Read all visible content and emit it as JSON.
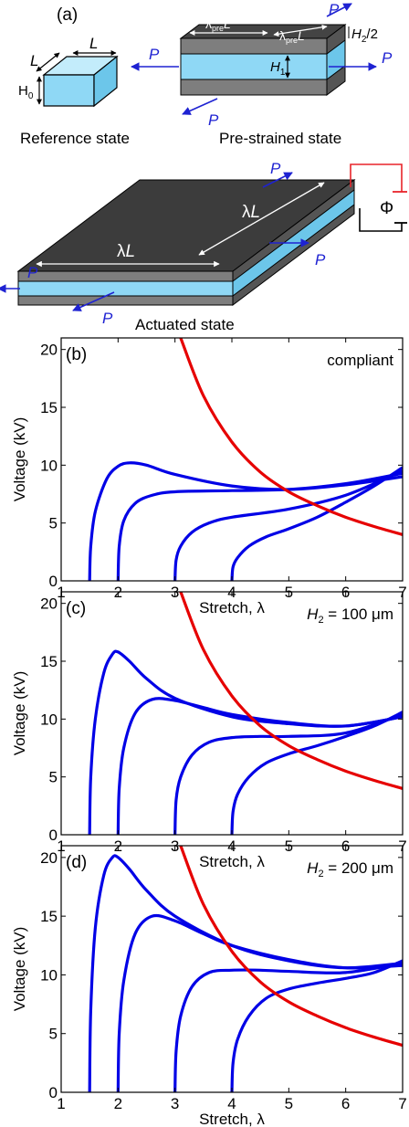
{
  "schematic": {
    "panel_label": "(a)",
    "reference_caption": "Reference state",
    "prestrained_caption": "Pre-strained state",
    "actuated_caption": "Actuated state",
    "label_L": "L",
    "label_H0": "H",
    "label_H0_sub": "0",
    "label_H1": "H",
    "label_H1_sub": "1",
    "label_H2": "H",
    "label_H2_sub": "2",
    "label_H2_suffix": "/2",
    "label_lambda": "λ",
    "label_pre": "pre",
    "label_P": "P",
    "label_Phi": "Φ",
    "colors": {
      "electrode": "#3c3c3c",
      "elastomer": "#8fd8f5",
      "force": "#1e22d2",
      "wire_red": "#e8242a"
    }
  },
  "chart_data": [
    {
      "type": "line",
      "panel_label": "(b)",
      "annotation": "compliant",
      "annotation_var": "",
      "annotation_sub": "",
      "annotation_rest": "",
      "xlabel": "Stretch, λ",
      "ylabel": "Voltage (kV)",
      "xlim": [
        1,
        7
      ],
      "ylim": [
        0,
        21
      ],
      "xticks": [
        "1",
        "2",
        "3",
        "4",
        "5",
        "6",
        "7"
      ],
      "yticks": [
        "0",
        "5",
        "10",
        "15",
        "20"
      ],
      "grid": false,
      "series": [
        {
          "color": "#0000e6",
          "x": [
            1.5,
            1.52,
            1.6,
            1.8,
            2.0,
            2.2,
            2.5,
            3.0,
            4.0,
            5.0,
            6.0,
            7.0
          ],
          "y": [
            0,
            3.0,
            6.0,
            8.8,
            9.9,
            10.2,
            10.0,
            9.2,
            8.2,
            7.9,
            8.3,
            9.0
          ]
        },
        {
          "color": "#0000e6",
          "x": [
            2.0,
            2.02,
            2.1,
            2.3,
            2.6,
            3.0,
            4.0,
            5.0,
            6.0,
            7.0
          ],
          "y": [
            0,
            3.0,
            5.2,
            6.7,
            7.4,
            7.7,
            7.8,
            7.9,
            8.4,
            9.3
          ]
        },
        {
          "color": "#0000e6",
          "x": [
            3.0,
            3.02,
            3.1,
            3.3,
            3.6,
            4.0,
            5.0,
            6.0,
            7.0
          ],
          "y": [
            0,
            1.8,
            3.0,
            4.2,
            5.0,
            5.5,
            6.2,
            7.4,
            9.5
          ]
        },
        {
          "color": "#0000e6",
          "x": [
            4.0,
            4.02,
            4.1,
            4.3,
            4.6,
            5.0,
            5.5,
            6.0,
            6.5,
            7.0
          ],
          "y": [
            0,
            1.2,
            2.0,
            3.0,
            3.8,
            4.5,
            5.5,
            6.8,
            8.2,
            9.8
          ]
        },
        {
          "color": "#e60000",
          "x": [
            3.1,
            3.5,
            4.0,
            4.5,
            5.0,
            5.5,
            6.0,
            6.5,
            7.0
          ],
          "y": [
            21,
            16.0,
            12.0,
            9.4,
            7.7,
            6.5,
            5.5,
            4.7,
            4.0
          ]
        }
      ]
    },
    {
      "type": "line",
      "panel_label": "(c)",
      "annotation": "",
      "annotation_var": "H",
      "annotation_sub": "2",
      "annotation_rest": " = 100 μm",
      "xlabel": "Stretch, λ",
      "ylabel": "Voltage (kV)",
      "xlim": [
        1,
        7
      ],
      "ylim": [
        0,
        21
      ],
      "xticks": [
        "1",
        "2",
        "3",
        "4",
        "5",
        "6",
        "7"
      ],
      "yticks": [
        "0",
        "5",
        "10",
        "15",
        "20"
      ],
      "grid": false,
      "series": [
        {
          "color": "#0000e6",
          "x": [
            1.5,
            1.52,
            1.6,
            1.75,
            1.9,
            2.0,
            2.2,
            2.5,
            3.0,
            4.0,
            5.0,
            6.0,
            7.0
          ],
          "y": [
            0,
            5.0,
            10.0,
            14.0,
            15.6,
            15.8,
            15.0,
            13.5,
            11.8,
            10.2,
            9.6,
            9.4,
            10.2
          ]
        },
        {
          "color": "#0000e6",
          "x": [
            2.0,
            2.02,
            2.1,
            2.3,
            2.6,
            3.0,
            3.5,
            4.0,
            5.0,
            6.0,
            7.0
          ],
          "y": [
            0,
            4.0,
            7.5,
            10.5,
            11.7,
            11.6,
            11.0,
            10.4,
            9.7,
            9.4,
            10.2
          ]
        },
        {
          "color": "#0000e6",
          "x": [
            3.0,
            3.02,
            3.1,
            3.3,
            3.6,
            4.0,
            4.5,
            5.0,
            6.0,
            7.0
          ],
          "y": [
            0,
            3.0,
            5.0,
            6.9,
            8.0,
            8.4,
            8.5,
            8.5,
            8.8,
            10.4
          ]
        },
        {
          "color": "#0000e6",
          "x": [
            4.0,
            4.02,
            4.1,
            4.3,
            4.6,
            5.0,
            5.5,
            6.0,
            6.5,
            7.0
          ],
          "y": [
            0,
            2.0,
            3.5,
            5.0,
            6.2,
            7.0,
            7.7,
            8.5,
            9.4,
            10.6
          ]
        },
        {
          "color": "#e60000",
          "x": [
            3.1,
            3.5,
            4.0,
            4.5,
            5.0,
            5.5,
            6.0,
            6.5,
            7.0
          ],
          "y": [
            21,
            16.0,
            12.0,
            9.4,
            7.7,
            6.5,
            5.5,
            4.7,
            4.0
          ]
        }
      ]
    },
    {
      "type": "line",
      "panel_label": "(d)",
      "annotation": "",
      "annotation_var": "H",
      "annotation_sub": "2",
      "annotation_rest": " = 200 μm",
      "xlabel": "Stretch, λ",
      "ylabel": "Voltage (kV)",
      "xlim": [
        1,
        7
      ],
      "ylim": [
        0,
        21
      ],
      "xticks": [
        "1",
        "2",
        "3",
        "4",
        "5",
        "6",
        "7"
      ],
      "yticks": [
        "0",
        "5",
        "10",
        "15",
        "20"
      ],
      "grid": false,
      "series": [
        {
          "color": "#0000e6",
          "x": [
            1.5,
            1.52,
            1.6,
            1.75,
            1.9,
            2.0,
            2.2,
            2.5,
            3.0,
            4.0,
            5.0,
            6.0,
            7.0
          ],
          "y": [
            0,
            7.0,
            14.0,
            18.5,
            20.0,
            20.0,
            19.0,
            17.2,
            15.0,
            12.5,
            11.2,
            10.6,
            11.0
          ]
        },
        {
          "color": "#0000e6",
          "x": [
            2.0,
            2.02,
            2.1,
            2.3,
            2.6,
            3.0,
            3.5,
            4.0,
            5.0,
            6.0,
            7.0
          ],
          "y": [
            0,
            5.0,
            9.5,
            13.5,
            15.0,
            14.6,
            13.5,
            12.5,
            11.3,
            10.6,
            10.8
          ]
        },
        {
          "color": "#0000e6",
          "x": [
            3.0,
            3.02,
            3.1,
            3.3,
            3.6,
            4.0,
            4.5,
            5.0,
            6.0,
            7.0
          ],
          "y": [
            0,
            3.5,
            6.5,
            9.0,
            10.2,
            10.4,
            10.4,
            10.3,
            10.2,
            11.0
          ]
        },
        {
          "color": "#0000e6",
          "x": [
            4.0,
            4.02,
            4.1,
            4.3,
            4.6,
            5.0,
            5.5,
            6.0,
            6.5,
            7.0
          ],
          "y": [
            0,
            2.5,
            4.5,
            6.5,
            8.0,
            8.8,
            9.3,
            9.7,
            10.2,
            11.2
          ]
        },
        {
          "color": "#e60000",
          "x": [
            3.1,
            3.5,
            4.0,
            4.5,
            5.0,
            5.5,
            6.0,
            6.5,
            7.0
          ],
          "y": [
            21,
            16.0,
            12.0,
            9.4,
            7.7,
            6.5,
            5.5,
            4.7,
            4.0
          ]
        }
      ]
    }
  ]
}
